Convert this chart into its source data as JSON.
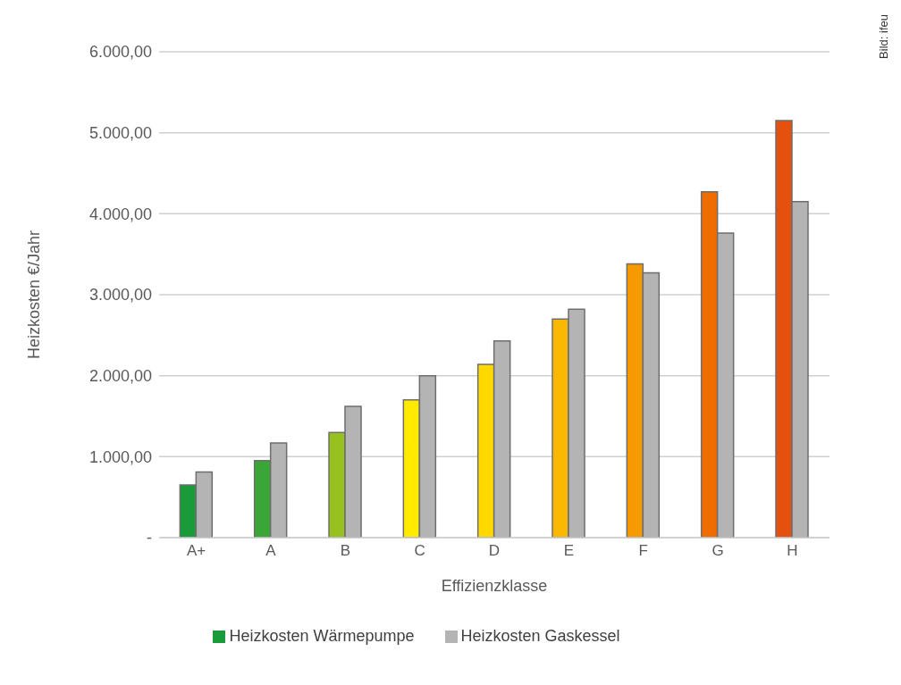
{
  "chart_data": {
    "type": "bar",
    "xlabel": "Effizienzklasse",
    "ylabel": "Heizkosten €/Jahr",
    "categories": [
      "A+",
      "A",
      "B",
      "C",
      "D",
      "E",
      "F",
      "G",
      "H"
    ],
    "series": [
      {
        "name": "Heizkosten Wärmepumpe",
        "color": "#1a9b3a",
        "colors": [
          "#1a9b3a",
          "#3aa637",
          "#96c11f",
          "#ffea00",
          "#ffd800",
          "#fbb800",
          "#f59a00",
          "#ee6c00",
          "#e5500c"
        ],
        "values": [
          650,
          950,
          1300,
          1700,
          2140,
          2700,
          3380,
          4270,
          5150
        ]
      },
      {
        "name": "Heizkosten Gaskessel",
        "color": "#b4b4b4",
        "values": [
          810,
          1170,
          1620,
          2000,
          2430,
          2820,
          3270,
          3760,
          4150
        ]
      }
    ],
    "ylim": [
      0,
      6000
    ],
    "yticks": [
      {
        "value": 0,
        "label": "-"
      },
      {
        "value": 1000,
        "label": "1.000,00"
      },
      {
        "value": 2000,
        "label": "2.000,00"
      },
      {
        "value": 3000,
        "label": "3.000,00"
      },
      {
        "value": 4000,
        "label": "4.000,00"
      },
      {
        "value": 5000,
        "label": "5.000,00"
      },
      {
        "value": 6000,
        "label": "6.000,00"
      }
    ],
    "grid": "y",
    "legend": "bottom",
    "annotations": [
      "Bild: ifeu"
    ]
  }
}
